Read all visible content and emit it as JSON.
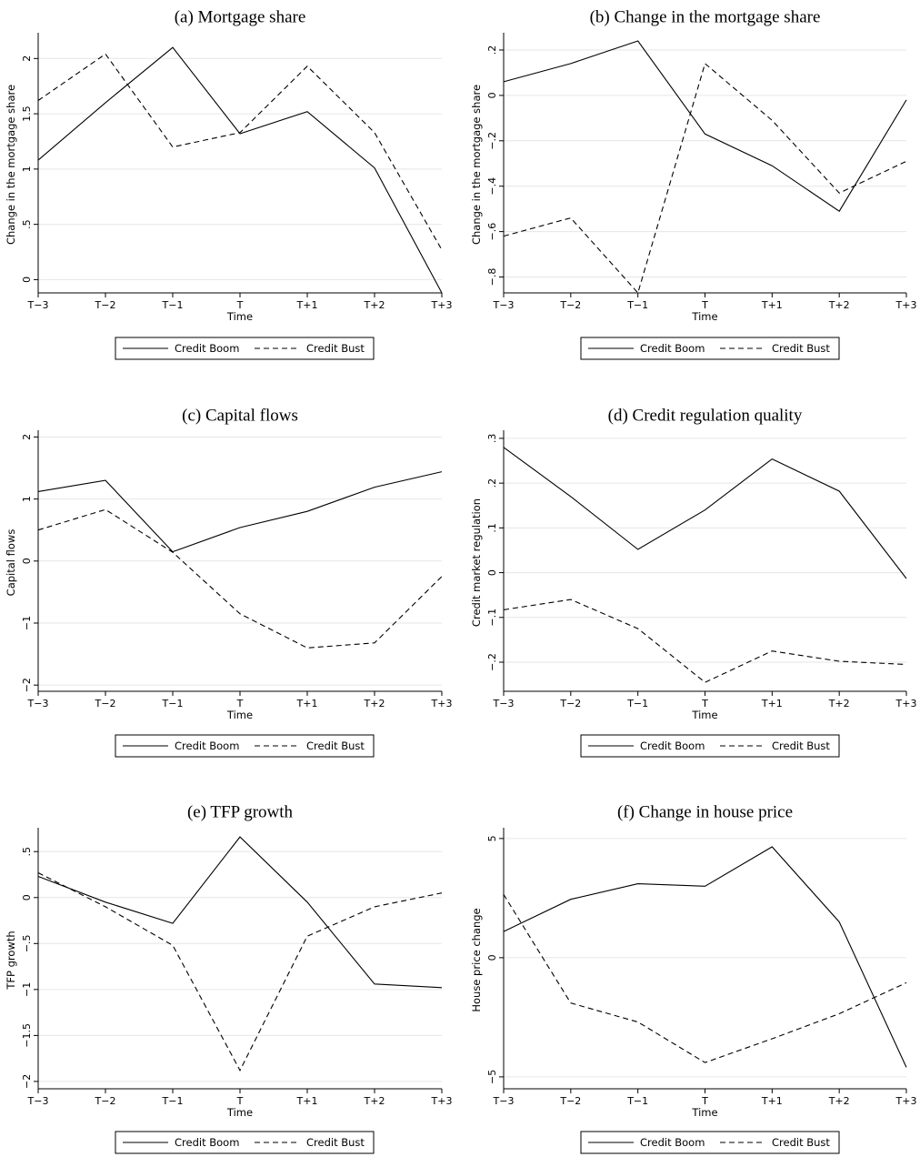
{
  "chart_data": [
    {
      "type": "line",
      "title": "(a) Mortgage share",
      "xlabel": "Time",
      "ylabel": "Change in the mortgage share",
      "categories": [
        "T−3",
        "T−2",
        "T−1",
        "T",
        "T+1",
        "T+2",
        "T+3"
      ],
      "yticks": [
        0,
        0.5,
        1,
        1.5,
        2
      ],
      "ytick_labels": [
        "0",
        ".5",
        "1",
        "1.5",
        "2"
      ],
      "ylim": [
        -0.12,
        2.2
      ],
      "grid": true,
      "legend_position": "bottom",
      "series": [
        {
          "name": "Credit Boom",
          "dash": "solid",
          "values": [
            1.08,
            1.6,
            2.1,
            1.32,
            1.52,
            1.01,
            -0.12
          ]
        },
        {
          "name": "Credit Bust",
          "dash": "dashed",
          "values": [
            1.62,
            2.04,
            1.2,
            1.33,
            1.93,
            1.33,
            0.27
          ]
        }
      ]
    },
    {
      "type": "line",
      "title": "(b) Change in the mortgage share",
      "xlabel": "Time",
      "ylabel": "Change in the mortgage share",
      "categories": [
        "T−3",
        "T−2",
        "T−1",
        "T",
        "T+1",
        "T+2",
        "T+3"
      ],
      "yticks": [
        -0.8,
        -0.6,
        -0.4,
        -0.2,
        0,
        0.2
      ],
      "ytick_labels": [
        "−.8",
        "−.6",
        "−.4",
        "−.2",
        "0",
        ".2"
      ],
      "ylim": [
        -0.87,
        0.26
      ],
      "grid": true,
      "legend_position": "bottom",
      "series": [
        {
          "name": "Credit Boom",
          "dash": "solid",
          "values": [
            0.06,
            0.14,
            0.24,
            -0.17,
            -0.31,
            -0.51,
            -0.02
          ]
        },
        {
          "name": "Credit Bust",
          "dash": "dashed",
          "values": [
            -0.62,
            -0.54,
            -0.87,
            0.14,
            -0.11,
            -0.43,
            -0.29
          ]
        }
      ]
    },
    {
      "type": "line",
      "title": "(c) Capital flows",
      "xlabel": "Time",
      "ylabel": "Capital flows",
      "categories": [
        "T−3",
        "T−2",
        "T−1",
        "T",
        "T+1",
        "T+2",
        "T+3"
      ],
      "yticks": [
        -2,
        -1,
        0,
        1,
        2
      ],
      "ytick_labels": [
        "−2",
        "−1",
        "0",
        "1",
        "2"
      ],
      "ylim": [
        -2.1,
        2.05
      ],
      "grid": true,
      "legend_position": "bottom",
      "series": [
        {
          "name": "Credit Boom",
          "dash": "solid",
          "values": [
            1.12,
            1.3,
            0.15,
            0.54,
            0.8,
            1.19,
            1.44
          ]
        },
        {
          "name": "Credit Bust",
          "dash": "dashed",
          "values": [
            0.5,
            0.83,
            0.14,
            -0.85,
            -1.4,
            -1.32,
            -0.25
          ]
        }
      ]
    },
    {
      "type": "line",
      "title": "(d) Credit regulation quality",
      "xlabel": "Time",
      "ylabel": "Credit market regulation",
      "categories": [
        "T−3",
        "T−2",
        "T−1",
        "T",
        "T+1",
        "T+2",
        "T+3"
      ],
      "yticks": [
        -0.2,
        -0.1,
        0,
        0.1,
        0.2,
        0.3
      ],
      "ytick_labels": [
        "−.2",
        "−.1",
        "0",
        ".1",
        ".2",
        ".3"
      ],
      "ylim": [
        -0.265,
        0.31
      ],
      "grid": true,
      "legend_position": "bottom",
      "series": [
        {
          "name": "Credit Boom",
          "dash": "solid",
          "values": [
            0.28,
            0.17,
            0.052,
            0.14,
            0.254,
            0.182,
            -0.013
          ]
        },
        {
          "name": "Credit Bust",
          "dash": "dashed",
          "values": [
            -0.083,
            -0.06,
            -0.125,
            -0.245,
            -0.175,
            -0.198,
            -0.205
          ]
        }
      ]
    },
    {
      "type": "line",
      "title": "(e) TFP growth",
      "xlabel": "Time",
      "ylabel": "TFP growth",
      "categories": [
        "T−3",
        "T−2",
        "T−1",
        "T",
        "T+1",
        "T+2",
        "T+3"
      ],
      "yticks": [
        -2,
        -1.5,
        -1,
        -0.5,
        0,
        0.5
      ],
      "ytick_labels": [
        "−2",
        "−1.5",
        "−1",
        "−.5",
        "0",
        ".5"
      ],
      "ylim": [
        -2.08,
        0.72
      ],
      "grid": true,
      "legend_position": "bottom",
      "series": [
        {
          "name": "Credit Boom",
          "dash": "solid",
          "values": [
            0.23,
            -0.05,
            -0.28,
            0.66,
            -0.05,
            -0.94,
            -0.98
          ]
        },
        {
          "name": "Credit Bust",
          "dash": "dashed",
          "values": [
            0.27,
            -0.1,
            -0.52,
            -1.88,
            -0.42,
            -0.1,
            0.05
          ]
        }
      ]
    },
    {
      "type": "line",
      "title": "(f) Change in house price",
      "xlabel": "Time",
      "ylabel": "House price change",
      "categories": [
        "T−3",
        "T−2",
        "T−1",
        "T",
        "T+1",
        "T+2",
        "T+3"
      ],
      "yticks": [
        -5,
        0,
        5
      ],
      "ytick_labels": [
        "−5",
        "0",
        "5"
      ],
      "ylim": [
        -5.5,
        5.3
      ],
      "grid": true,
      "legend_position": "bottom",
      "series": [
        {
          "name": "Credit Boom",
          "dash": "solid",
          "values": [
            1.1,
            2.45,
            3.1,
            3.0,
            4.65,
            1.5,
            -4.6
          ]
        },
        {
          "name": "Credit Bust",
          "dash": "dashed",
          "values": [
            2.65,
            -1.9,
            -2.7,
            -4.4,
            -3.4,
            -2.35,
            -1.05
          ]
        }
      ]
    }
  ]
}
